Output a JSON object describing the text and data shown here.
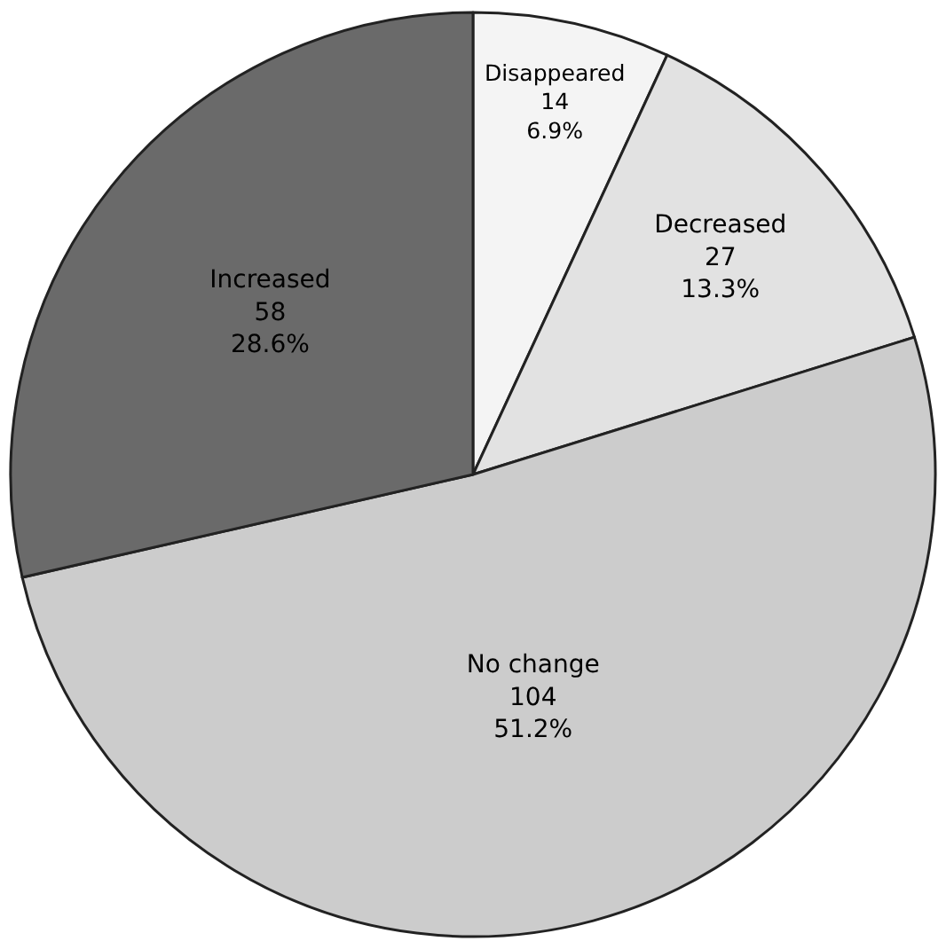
{
  "chart_data": {
    "type": "pie",
    "categories": [
      "Disappeared",
      "Decreased",
      "No change",
      "Increased"
    ],
    "values": [
      14,
      27,
      104,
      58
    ],
    "value_labels": [
      "14\n6.9%",
      "27\n13.3%",
      "104\n51.2%",
      "58\n28.6%"
    ],
    "colors": [
      "#f4f4f4",
      "#e2e2e2",
      "#cccccc",
      "#6a6a6a"
    ]
  }
}
